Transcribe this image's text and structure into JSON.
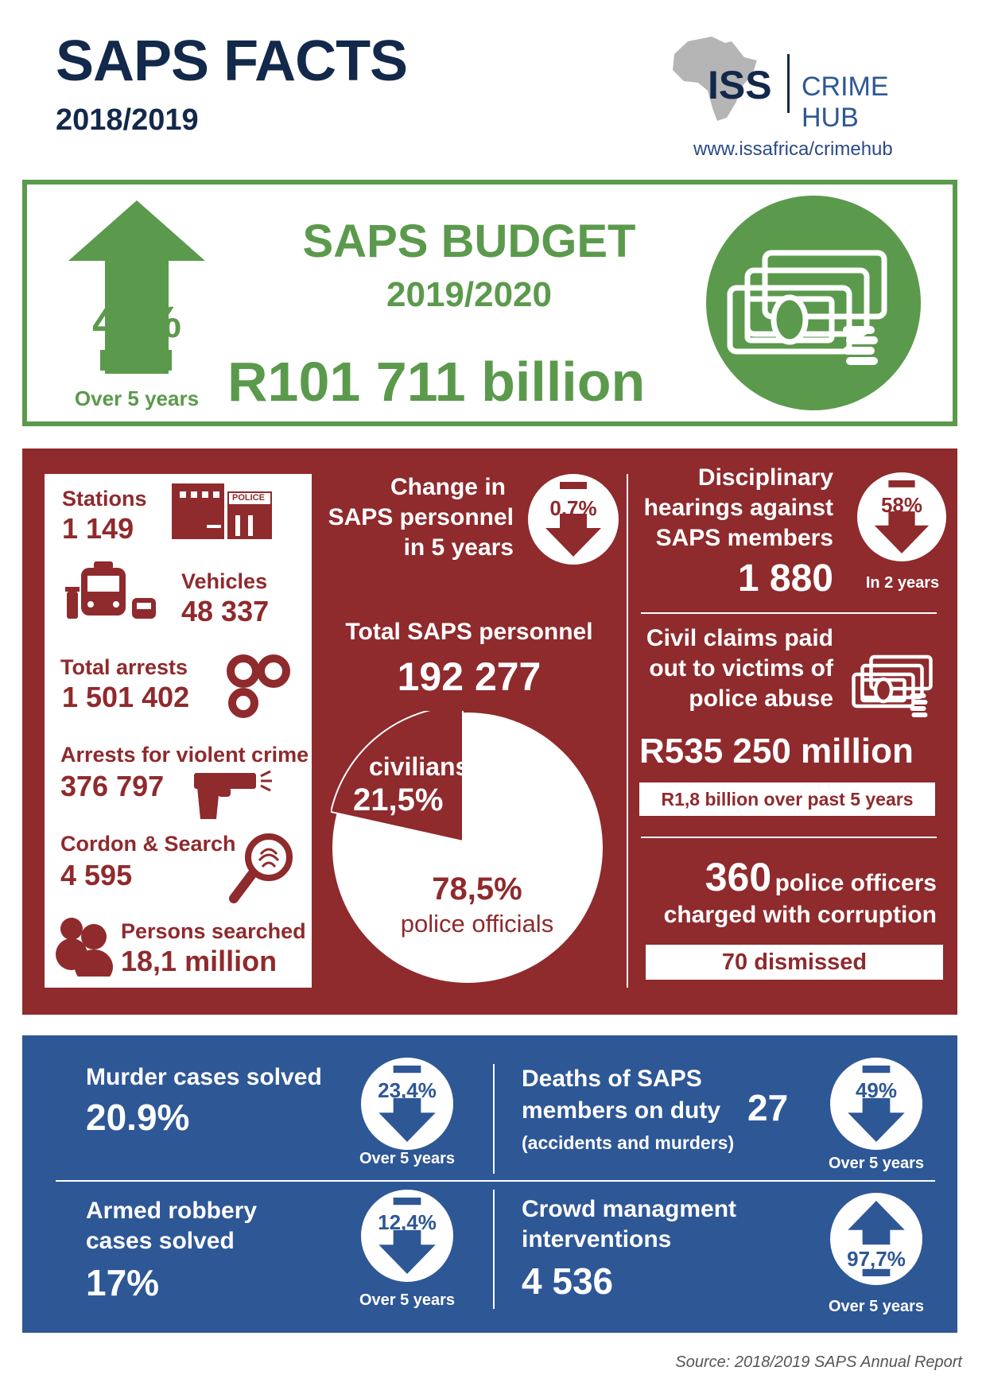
{
  "header": {
    "title": "SAPS FACTS",
    "year": "2018/2019",
    "logo_iss": "ISS",
    "logo_hub": "CRIME HUB",
    "website": "www.issafrica/crimehub"
  },
  "budget": {
    "title": "SAPS BUDGET",
    "year": "2019/2020",
    "amount": "R101 711 billion",
    "change": "40%",
    "change_period": "Over 5 years",
    "change_direction": "up"
  },
  "resources": {
    "stations_label": "Stations",
    "stations_value": "1 149",
    "police_sign": "POLICE",
    "vehicles_label": "Vehicles",
    "vehicles_value": "48 337",
    "arrests_label": "Total arrests",
    "arrests_value": "1 501 402",
    "violent_label": "Arrests for violent crime",
    "violent_value": "376 797",
    "cordon_label": "Cordon & Search",
    "cordon_value": "4 595",
    "searched_label": "Persons searched",
    "searched_value": "18,1 million"
  },
  "personnel": {
    "change_line1": "Change in",
    "change_line2": "SAPS personnel",
    "change_line3": "in 5 years",
    "change_value": "0,7%",
    "total_label": "Total SAPS personnel",
    "total_value": "192 277"
  },
  "chart_data": {
    "type": "pie",
    "categories": [
      "civilians",
      "police officials"
    ],
    "values": [
      21.5,
      78.5
    ],
    "labels": [
      "21,5%",
      "78,5%"
    ],
    "colors": [
      "#8f2a2d",
      "#ffffff"
    ]
  },
  "discipline": {
    "line1": "Disciplinary",
    "line2": "hearings against",
    "line3": "SAPS members",
    "value": "1 880",
    "change": "58%",
    "change_period": "In 2 years"
  },
  "claims": {
    "line1": "Civil claims paid",
    "line2": "out to victims of",
    "line3": "police abuse",
    "value": "R535 250 million",
    "note": "R1,8 billion over past 5 years"
  },
  "corruption": {
    "number": "360",
    "line1": "police officers",
    "line2": "charged with corruption",
    "dismissed": "70 dismissed"
  },
  "outcomes": {
    "murder_label": "Murder cases solved",
    "murder_value": "20.9%",
    "murder_change": "23,4%",
    "murder_period": "Over 5 years",
    "deaths_line1": "Deaths of SAPS",
    "deaths_line2": "members on duty",
    "deaths_value": "27",
    "deaths_note": "(accidents and murders)",
    "deaths_change": "49%",
    "deaths_period": "Over 5 years",
    "robbery_line1": "Armed robbery",
    "robbery_line2": "cases solved",
    "robbery_value": "17%",
    "robbery_change": "12,4%",
    "robbery_period": "Over 5 years",
    "crowd_line1": "Crowd managment",
    "crowd_line2": "interventions",
    "crowd_value": "4 536",
    "crowd_change": "97,7%",
    "crowd_period": "Over 5 years"
  },
  "source": "Source: 2018/2019 SAPS Annual Report",
  "colors": {
    "navy": "#13294b",
    "green": "#5b9a4c",
    "red": "#8f2a2d",
    "blue": "#2e5796"
  }
}
